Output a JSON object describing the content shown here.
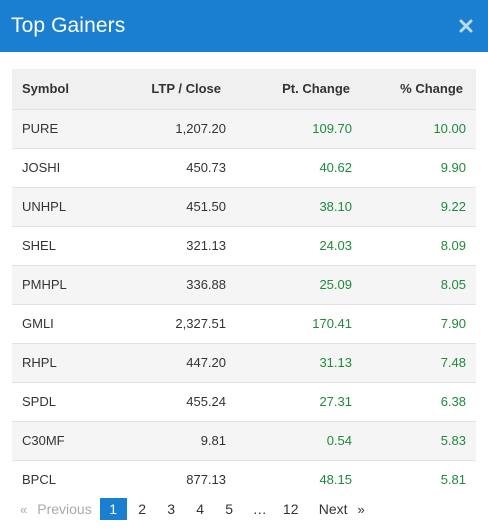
{
  "modal": {
    "title": "Top Gainers",
    "close_icon": "close-icon"
  },
  "table": {
    "headers": {
      "symbol": "Symbol",
      "ltp": "LTP / Close",
      "pt_change": "Pt. Change",
      "pct_change": "% Change"
    },
    "rows": [
      {
        "symbol": "PURE",
        "ltp": "1,207.20",
        "pt_change": "109.70",
        "pct_change": "10.00"
      },
      {
        "symbol": "JOSHI",
        "ltp": "450.73",
        "pt_change": "40.62",
        "pct_change": "9.90"
      },
      {
        "symbol": "UNHPL",
        "ltp": "451.50",
        "pt_change": "38.10",
        "pct_change": "9.22"
      },
      {
        "symbol": "SHEL",
        "ltp": "321.13",
        "pt_change": "24.03",
        "pct_change": "8.09"
      },
      {
        "symbol": "PMHPL",
        "ltp": "336.88",
        "pt_change": "25.09",
        "pct_change": "8.05"
      },
      {
        "symbol": "GMLI",
        "ltp": "2,327.51",
        "pt_change": "170.41",
        "pct_change": "7.90"
      },
      {
        "symbol": "RHPL",
        "ltp": "447.20",
        "pt_change": "31.13",
        "pct_change": "7.48"
      },
      {
        "symbol": "SPDL",
        "ltp": "455.24",
        "pt_change": "27.31",
        "pct_change": "6.38"
      },
      {
        "symbol": "C30MF",
        "ltp": "9.81",
        "pt_change": "0.54",
        "pct_change": "5.83"
      },
      {
        "symbol": "BPCL",
        "ltp": "877.13",
        "pt_change": "48.15",
        "pct_change": "5.81"
      }
    ]
  },
  "pagination": {
    "prev_chevron": "«",
    "prev_label": "Previous",
    "pages": [
      "1",
      "2",
      "3",
      "4",
      "5"
    ],
    "active_page": "1",
    "ellipsis": "…",
    "last_page": "12",
    "next_label": "Next",
    "next_chevron": "»"
  },
  "colors": {
    "header_bg": "#1a7fd1",
    "positive": "#1e8a3c",
    "active_page_bg": "#1a7fd1"
  }
}
